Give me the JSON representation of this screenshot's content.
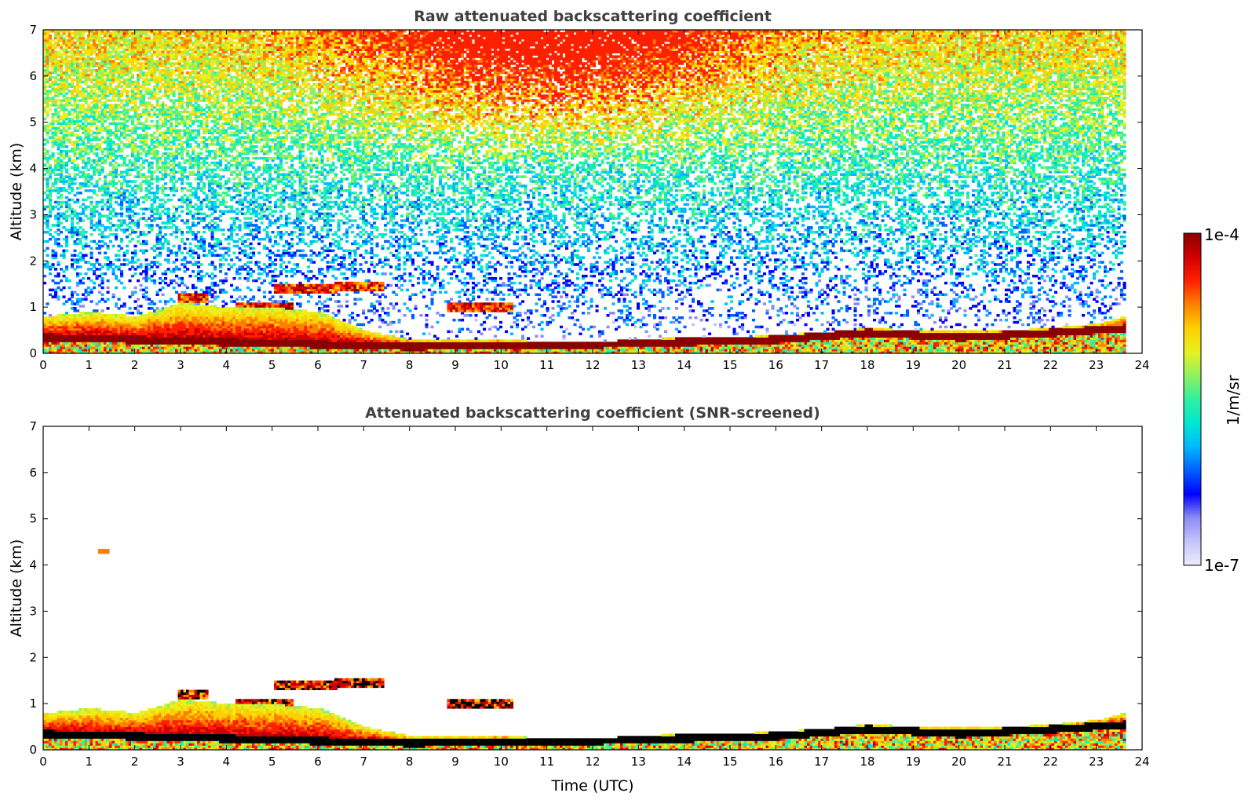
{
  "chart_data": [
    {
      "type": "heatmap",
      "title": "Raw attenuated backscattering coefficient",
      "xlabel": "",
      "ylabel": "Altitude (km)",
      "xlim": [
        0,
        24
      ],
      "ylim": [
        0,
        7
      ],
      "x_ticks": [
        "0",
        "1",
        "2",
        "3",
        "4",
        "5",
        "6",
        "7",
        "8",
        "9",
        "10",
        "11",
        "12",
        "13",
        "14",
        "15",
        "16",
        "17",
        "18",
        "19",
        "20",
        "21",
        "22",
        "23",
        "24"
      ],
      "y_ticks": [
        "0",
        "1",
        "2",
        "3",
        "4",
        "5",
        "6",
        "7"
      ],
      "data_end_time": 23.6,
      "color_scale": "log",
      "features": {
        "boundary_layer_top_km": [
          [
            0,
            0.8
          ],
          [
            1,
            0.9
          ],
          [
            2,
            0.8
          ],
          [
            3,
            1.1
          ],
          [
            4,
            1.0
          ],
          [
            5,
            1.0
          ],
          [
            6,
            0.9
          ],
          [
            7,
            0.5
          ],
          [
            8,
            0.3
          ],
          [
            9,
            0.3
          ],
          [
            10,
            0.3
          ],
          [
            11,
            0.25
          ],
          [
            12,
            0.25
          ],
          [
            13,
            0.3
          ],
          [
            14,
            0.35
          ],
          [
            15,
            0.35
          ],
          [
            16,
            0.4
          ],
          [
            17,
            0.45
          ],
          [
            18,
            0.55
          ],
          [
            19,
            0.5
          ],
          [
            20,
            0.5
          ],
          [
            21,
            0.5
          ],
          [
            22,
            0.55
          ],
          [
            23,
            0.65
          ],
          [
            23.6,
            0.8
          ]
        ],
        "strong_layer_km": [
          [
            0,
            0.35
          ],
          [
            2,
            0.3
          ],
          [
            4,
            0.25
          ],
          [
            6,
            0.2
          ],
          [
            8,
            0.15
          ],
          [
            10,
            0.18
          ],
          [
            12,
            0.2
          ],
          [
            14,
            0.25
          ],
          [
            16,
            0.3
          ],
          [
            18,
            0.45
          ],
          [
            20,
            0.35
          ],
          [
            22,
            0.45
          ],
          [
            23.6,
            0.55
          ]
        ],
        "elevated_aerosol_layers": [
          {
            "t_start": 2.9,
            "t_end": 3.6,
            "alt_km": 1.2
          },
          {
            "t_start": 4.2,
            "t_end": 5.4,
            "alt_km": 1.0
          },
          {
            "t_start": 5.0,
            "t_end": 6.4,
            "alt_km": 1.4
          },
          {
            "t_start": 6.3,
            "t_end": 7.4,
            "alt_km": 1.45
          },
          {
            "t_start": 8.8,
            "t_end": 10.2,
            "alt_km": 1.0
          }
        ],
        "noise_floor": "increasing with altitude; peak near 11 UTC above 5 km"
      }
    },
    {
      "type": "heatmap",
      "title": "Attenuated backscattering coefficient (SNR-screened)",
      "xlabel": "Time (UTC)",
      "ylabel": "Altitude (km)",
      "xlim": [
        0,
        24
      ],
      "ylim": [
        0,
        7
      ],
      "x_ticks": [
        "0",
        "1",
        "2",
        "3",
        "4",
        "5",
        "6",
        "7",
        "8",
        "9",
        "10",
        "11",
        "12",
        "13",
        "14",
        "15",
        "16",
        "17",
        "18",
        "19",
        "20",
        "21",
        "22",
        "23",
        "24"
      ],
      "y_ticks": [
        "0",
        "1",
        "2",
        "3",
        "4",
        "5",
        "6",
        "7"
      ],
      "data_end_time": 23.6,
      "color_scale": "log",
      "features": {
        "isolated_signal": {
          "t": 1.3,
          "alt_km": 4.3
        },
        "noise_removed_above_km": 2.0
      }
    }
  ],
  "colorbar": {
    "label": "1/m/sr",
    "max_label": "1e-4",
    "min_label": "1e-7",
    "colormap": [
      "#ececff",
      "#c4c4fa",
      "#8c8cf5",
      "#0000ff",
      "#0060ff",
      "#00b8ff",
      "#00e8d0",
      "#30f0a0",
      "#90f060",
      "#e8f020",
      "#ffd000",
      "#ff8000",
      "#ff2000",
      "#d00000",
      "#8b0000"
    ]
  }
}
